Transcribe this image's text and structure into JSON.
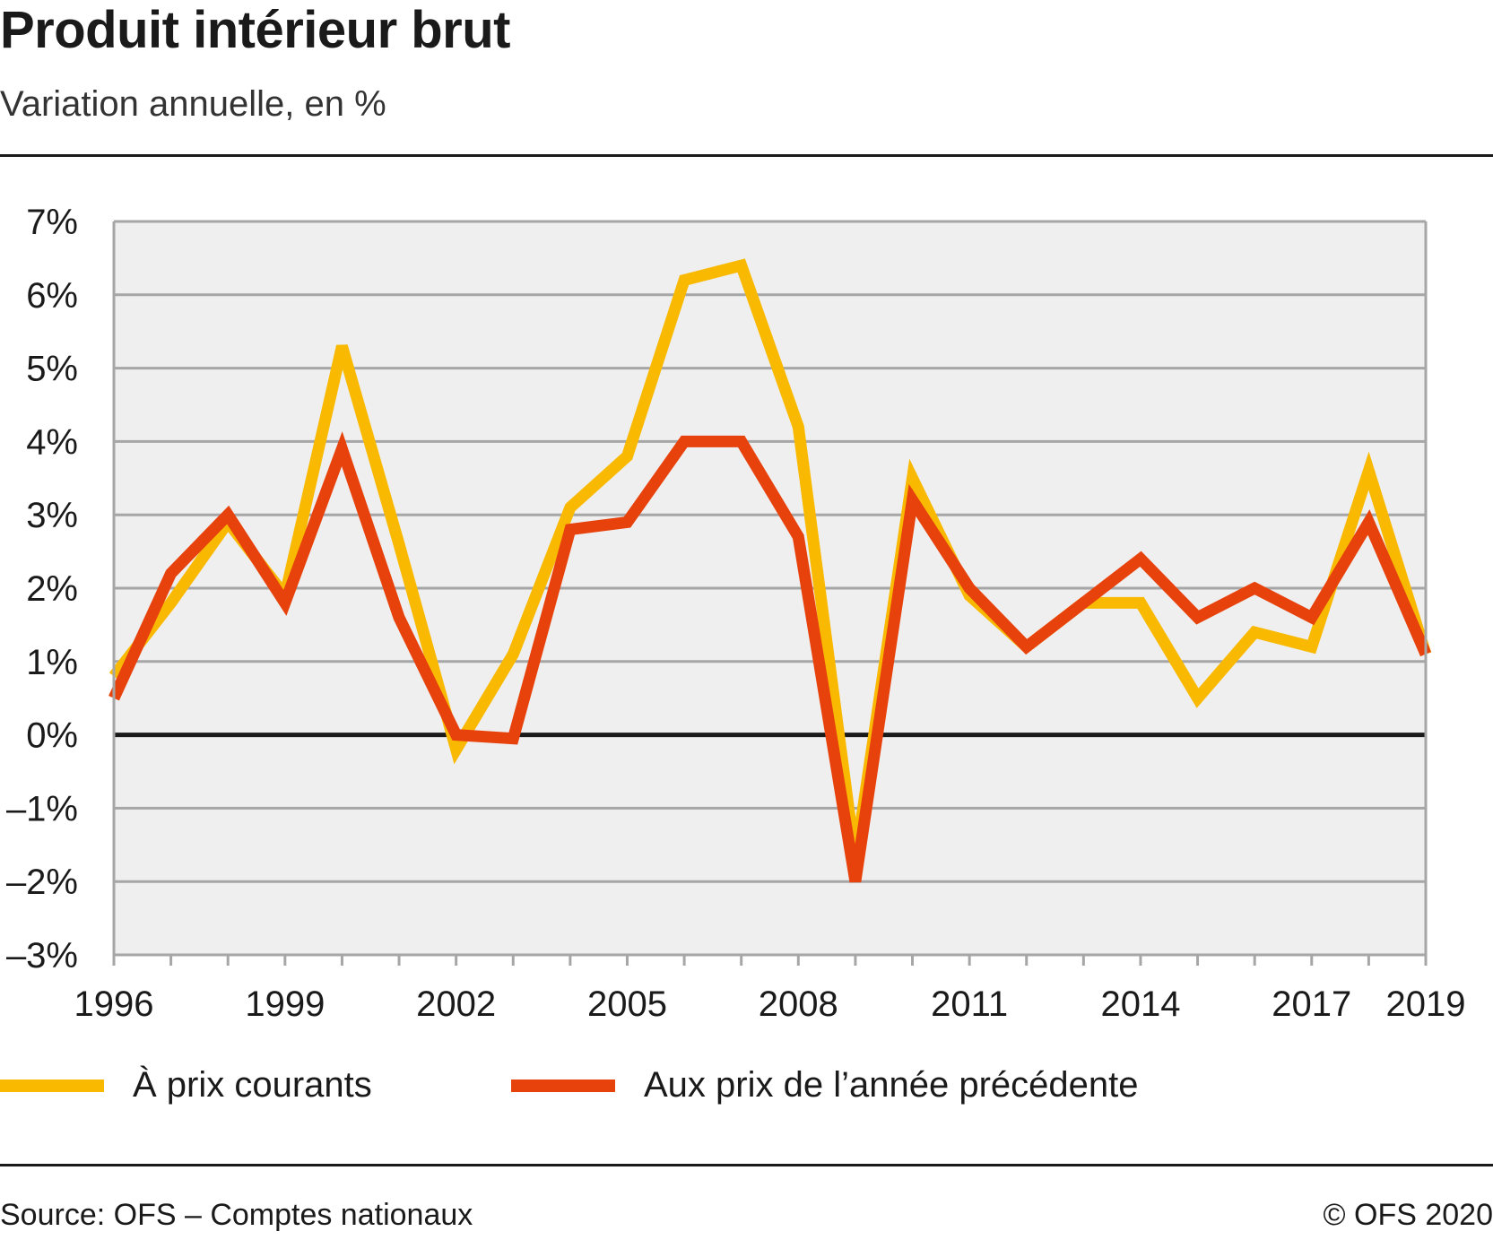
{
  "header": {
    "title": "Produit intérieur brut",
    "subtitle": "Variation annuelle, en %"
  },
  "footer": {
    "source": "Source: OFS – Comptes nationaux",
    "copyright": "© OFS 2020"
  },
  "colors": {
    "current_prices": "#f9b900",
    "previous_year_prices": "#e8420c",
    "plot_background": "#efefef",
    "grid": "#a6a6a6",
    "zero_line": "#1a1a1a"
  },
  "chart_data": {
    "type": "line",
    "title": "Produit intérieur brut",
    "subtitle": "Variation annuelle, en %",
    "xlabel": "",
    "ylabel": "",
    "x": [
      1996,
      1997,
      1998,
      1999,
      2000,
      2001,
      2002,
      2003,
      2004,
      2005,
      2006,
      2007,
      2008,
      2009,
      2010,
      2011,
      2012,
      2013,
      2014,
      2015,
      2016,
      2017,
      2018,
      2019
    ],
    "xlim": [
      1996,
      2019
    ],
    "ylim": [
      -3,
      7
    ],
    "x_ticks": [
      "1996",
      "1999",
      "2002",
      "2005",
      "2008",
      "2011",
      "2014",
      "2017",
      "2019"
    ],
    "y_ticks": [
      "7%",
      "6%",
      "5%",
      "4%",
      "3%",
      "2%",
      "1%",
      "0%",
      "–1%",
      "–2%",
      "–3%"
    ],
    "grid": true,
    "legend_position": "bottom",
    "series": [
      {
        "name": "À prix courants",
        "color": "#f9b900",
        "values": [
          0.8,
          1.8,
          2.9,
          1.9,
          5.3,
          2.6,
          -0.2,
          1.1,
          3.1,
          3.8,
          6.2,
          6.4,
          4.2,
          -1.7,
          3.5,
          1.9,
          1.2,
          1.8,
          1.8,
          0.5,
          1.4,
          1.2,
          3.6,
          1.1
        ]
      },
      {
        "name": "Aux prix de l’année précédente",
        "color": "#e8420c",
        "values": [
          0.5,
          2.2,
          3.0,
          1.8,
          3.9,
          1.6,
          0.0,
          -0.05,
          2.8,
          2.9,
          4.0,
          4.0,
          2.7,
          -2.0,
          3.2,
          2.0,
          1.2,
          1.8,
          2.4,
          1.6,
          2.0,
          1.6,
          2.9,
          1.1
        ]
      }
    ]
  }
}
